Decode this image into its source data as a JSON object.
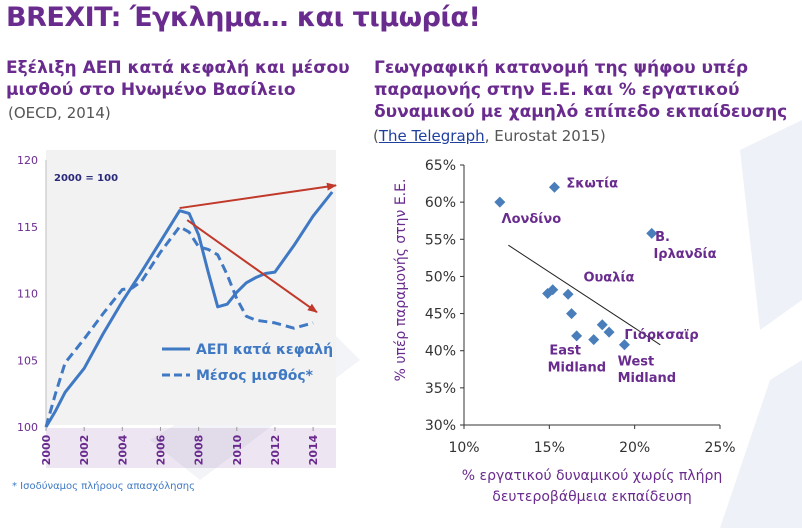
{
  "title": "BREXIT: Έγκλημα… και τιμωρία!",
  "left_panel": {
    "subtitle_line1": "Εξέλιξη ΑΕΠ κατά κεφαλή και μέσου",
    "subtitle_line2": "μισθού στο Ηνωμένο Βασίλειο",
    "source": "(OECD, 2014)",
    "footnote": "* Ισοδύναμος πλήρους απασχόλησης"
  },
  "right_panel": {
    "subtitle_line1": "Γεωγραφική κατανομή της ψήφου υπέρ",
    "subtitle_line2": "παραμονής στην Ε.Ε. και  % εργατικού",
    "subtitle_line3": "δυναμικού με χαμηλό επίπεδο εκπαίδευσης",
    "source_open": "(",
    "source_link": "The Telegraph",
    "source_rest": ", Eurostat 2015)"
  },
  "colors": {
    "title": "#6a2b8e",
    "series": "#3f78c3",
    "arrow": "#c0392b",
    "axis_text": "#6a2b8e",
    "axis_strip": "#6a2b8e",
    "scatter_marker": "#4a7ebb"
  },
  "chart_data": [
    {
      "type": "line",
      "base_note": "2000 = 100",
      "x_ticks": [
        "2000",
        "2002",
        "2004",
        "2006",
        "2008",
        "2010",
        "2012",
        "2014"
      ],
      "y_ticks": [
        "100",
        "105",
        "110",
        "115",
        "120"
      ],
      "xlim": [
        2000,
        2015.2
      ],
      "ylim": [
        100,
        120
      ],
      "grid": false,
      "legend_position": "bottom-right",
      "series": [
        {
          "name": "ΑΕΠ κατά κεφαλή",
          "style": "solid",
          "x": [
            2000,
            2000.5,
            2001,
            2002,
            2003,
            2004,
            2005,
            2006,
            2007,
            2007.5,
            2008,
            2008.5,
            2009,
            2009.5,
            2010,
            2010.5,
            2011,
            2011.5,
            2012,
            2013,
            2014,
            2015
          ],
          "values": [
            100.0,
            101.2,
            102.6,
            104.4,
            107.0,
            109.4,
            111.6,
            113.9,
            116.2,
            116.0,
            114.4,
            111.6,
            109.0,
            109.2,
            110.1,
            110.8,
            111.2,
            111.5,
            111.6,
            113.6,
            115.8,
            117.6
          ]
        },
        {
          "name": "Μέσος μισθός*",
          "style": "dashed",
          "x": [
            2000,
            2000.5,
            2001,
            2002,
            2003,
            2004,
            2004.5,
            2005,
            2006,
            2007,
            2007.5,
            2008,
            2008.5,
            2009,
            2009.5,
            2010,
            2010.5,
            2011,
            2012,
            2013,
            2014
          ],
          "values": [
            100.0,
            102.5,
            104.8,
            106.6,
            108.5,
            110.3,
            110.4,
            110.9,
            113.1,
            115.0,
            114.6,
            113.5,
            113.3,
            112.9,
            111.4,
            109.6,
            108.3,
            108.0,
            107.8,
            107.4,
            107.8
          ]
        }
      ],
      "annotations": [
        {
          "type": "arrow",
          "from": [
            2007,
            116.4
          ],
          "to": [
            2015.2,
            118.1
          ]
        },
        {
          "type": "arrow",
          "from": [
            2007.4,
            115.5
          ],
          "to": [
            2014.2,
            108.6
          ]
        }
      ]
    },
    {
      "type": "scatter",
      "xlabel_line1": "% εργατικού δυναμικού χωρίς πλήρη",
      "xlabel_line2": "δευτεροβάθμεια εκπαίδευση",
      "ylabel": "% υπέρ παραμονής στην Ε.Ε.",
      "x_ticks": [
        "10%",
        "15%",
        "20%",
        "25%"
      ],
      "y_ticks": [
        "30%",
        "35%",
        "40%",
        "45%",
        "50%",
        "55%",
        "60%",
        "65%"
      ],
      "xlim": [
        10,
        25
      ],
      "ylim": [
        30,
        65
      ],
      "grid": false,
      "points": [
        {
          "x": 12.1,
          "y": 60.0
        },
        {
          "x": 15.3,
          "y": 62.0
        },
        {
          "x": 21.0,
          "y": 55.8
        },
        {
          "x": 14.9,
          "y": 47.7
        },
        {
          "x": 15.2,
          "y": 48.2
        },
        {
          "x": 16.1,
          "y": 47.6
        },
        {
          "x": 16.3,
          "y": 45.0
        },
        {
          "x": 16.6,
          "y": 42.0
        },
        {
          "x": 17.6,
          "y": 41.5
        },
        {
          "x": 18.1,
          "y": 43.5
        },
        {
          "x": 18.5,
          "y": 42.5
        },
        {
          "x": 19.4,
          "y": 40.8
        }
      ],
      "trendline": {
        "x": [
          12.6,
          21.5
        ],
        "y": [
          54.2,
          40.8
        ]
      },
      "labels": [
        {
          "text": "Λονδίνο",
          "x": 12.2,
          "y": 57.2
        },
        {
          "text": "Σκωτία",
          "x": 16.0,
          "y": 62.0
        },
        {
          "text": "Β.",
          "x": 21.2,
          "y": 54.8
        },
        {
          "text": "Ιρλανδία",
          "x": 21.1,
          "y": 52.5
        },
        {
          "text": "Ουαλία",
          "x": 17.0,
          "y": 49.3
        },
        {
          "text": "East",
          "x": 15.0,
          "y": 39.5
        },
        {
          "text": "Midland",
          "x": 14.9,
          "y": 37.2
        },
        {
          "text": "West",
          "x": 19.0,
          "y": 38.0
        },
        {
          "text": "Midland",
          "x": 19.0,
          "y": 35.8
        },
        {
          "text": "Γιόρκσαϊρ",
          "x": 19.4,
          "y": 41.6
        }
      ]
    }
  ]
}
